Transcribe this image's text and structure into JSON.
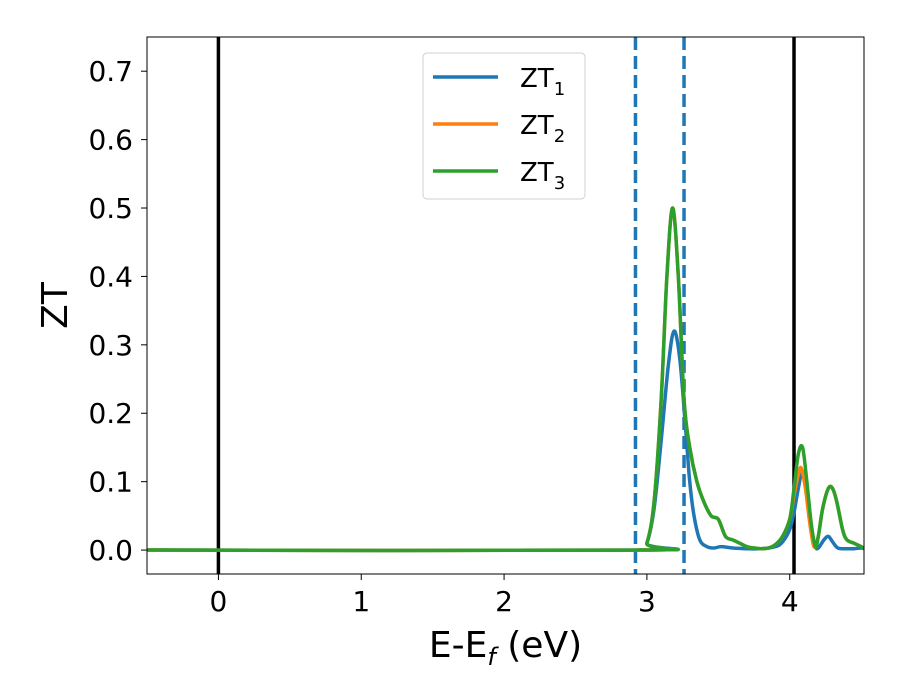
{
  "chart_data": {
    "type": "line",
    "xlabel_main": "E-E",
    "xlabel_sub": "f",
    "xlabel_tail": " (eV)",
    "ylabel": "ZT",
    "xlim": [
      -0.5,
      4.52
    ],
    "ylim": [
      -0.035,
      0.75
    ],
    "xticks": [
      0,
      1,
      2,
      3,
      4
    ],
    "xtick_labels": [
      "0",
      "1",
      "2",
      "3",
      "4"
    ],
    "yticks": [
      0.0,
      0.1,
      0.2,
      0.3,
      0.4,
      0.5,
      0.6,
      0.7
    ],
    "ytick_labels": [
      "0.0",
      "0.1",
      "0.2",
      "0.3",
      "0.4",
      "0.5",
      "0.6",
      "0.7"
    ],
    "grid": false,
    "legend_position": "top-center",
    "vlines": [
      {
        "x": 0.0,
        "style": "solid",
        "color": "#000000"
      },
      {
        "x": 4.03,
        "style": "solid",
        "color": "#000000"
      },
      {
        "x": 2.92,
        "style": "dashed",
        "color": "#1f77b4"
      },
      {
        "x": 3.26,
        "style": "dashed",
        "color": "#1f77b4"
      }
    ],
    "series": [
      {
        "name": "ZT",
        "subscript": "1",
        "color": "#1f77b4",
        "x": [
          -0.5,
          2.95,
          3.0,
          3.05,
          3.1,
          3.15,
          3.19,
          3.23,
          3.27,
          3.3,
          3.33,
          3.37,
          3.42,
          3.47,
          3.52,
          3.6,
          3.7,
          3.8,
          3.9,
          3.95,
          4.0,
          4.03,
          4.06,
          4.09,
          4.12,
          4.15,
          4.18,
          4.2,
          4.24,
          4.27,
          4.3,
          4.33,
          4.36,
          4.4,
          4.45,
          4.5,
          4.52
        ],
        "y": [
          0.0,
          0.0,
          0.01,
          0.06,
          0.16,
          0.27,
          0.32,
          0.28,
          0.18,
          0.1,
          0.05,
          0.015,
          0.005,
          0.003,
          0.005,
          0.003,
          0.002,
          0.002,
          0.005,
          0.012,
          0.03,
          0.055,
          0.09,
          0.115,
          0.08,
          0.03,
          0.005,
          0.003,
          0.015,
          0.02,
          0.012,
          0.004,
          0.002,
          0.002,
          0.002,
          0.003,
          0.002
        ]
      },
      {
        "name": "ZT",
        "subscript": "2",
        "color": "#ff7f0e",
        "x": [
          -0.5,
          2.95,
          3.0,
          3.05,
          3.1,
          3.14,
          3.18,
          3.22,
          3.26,
          3.3,
          3.35,
          3.4,
          3.45,
          3.5,
          3.55,
          3.6,
          3.65,
          3.7,
          3.75,
          3.8,
          3.85,
          3.9,
          3.95,
          4.0,
          4.03,
          4.06,
          4.08,
          4.11,
          4.14,
          4.17,
          4.2,
          4.23,
          4.27,
          4.3,
          4.33,
          4.37,
          4.4,
          4.45,
          4.5,
          4.52
        ],
        "y": [
          0.0,
          0.0,
          0.01,
          0.07,
          0.22,
          0.4,
          0.5,
          0.4,
          0.22,
          0.15,
          0.1,
          0.07,
          0.05,
          0.045,
          0.02,
          0.015,
          0.01,
          0.005,
          0.003,
          0.002,
          0.003,
          0.008,
          0.02,
          0.045,
          0.08,
          0.11,
          0.12,
          0.09,
          0.04,
          0.005,
          0.02,
          0.06,
          0.09,
          0.09,
          0.07,
          0.03,
          0.015,
          0.01,
          0.005,
          0.002
        ]
      },
      {
        "name": "ZT",
        "subscript": "3",
        "color": "#2ca02c",
        "x": [
          -0.5,
          2.95,
          3.0,
          3.05,
          3.1,
          3.14,
          3.18,
          3.22,
          3.26,
          3.3,
          3.35,
          3.4,
          3.45,
          3.5,
          3.55,
          3.6,
          3.65,
          3.7,
          3.75,
          3.8,
          3.85,
          3.9,
          3.95,
          4.0,
          4.03,
          4.06,
          4.09,
          4.12,
          4.15,
          4.18,
          4.2,
          4.23,
          4.27,
          4.3,
          4.33,
          4.37,
          4.4,
          4.45,
          4.5,
          4.52
        ],
        "y": [
          0.0,
          0.0,
          0.01,
          0.07,
          0.22,
          0.4,
          0.5,
          0.4,
          0.22,
          0.15,
          0.1,
          0.07,
          0.05,
          0.045,
          0.02,
          0.015,
          0.01,
          0.005,
          0.003,
          0.002,
          0.003,
          0.008,
          0.02,
          0.045,
          0.09,
          0.14,
          0.15,
          0.1,
          0.04,
          0.005,
          0.02,
          0.06,
          0.09,
          0.09,
          0.07,
          0.03,
          0.015,
          0.01,
          0.005,
          0.002
        ]
      }
    ]
  }
}
